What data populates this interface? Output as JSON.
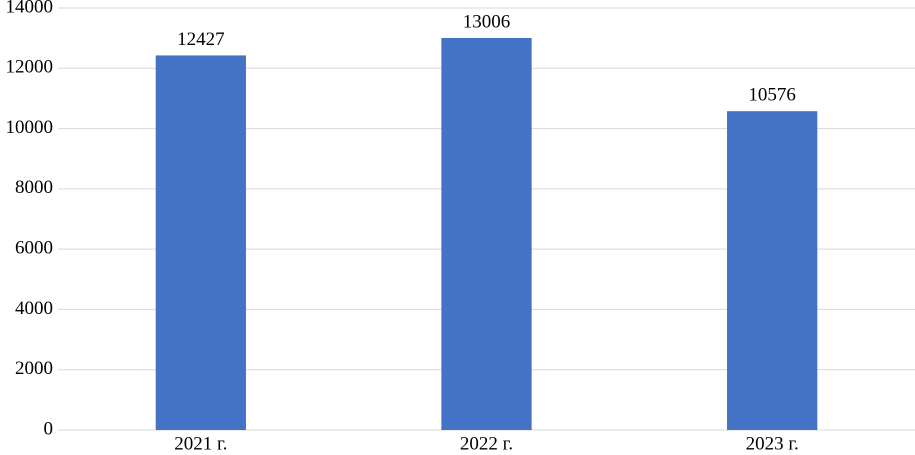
{
  "chart_data": {
    "type": "bar",
    "categories": [
      "2021 г.",
      "2022 г.",
      "2023 г."
    ],
    "values": [
      12427,
      13006,
      10576
    ],
    "color": "#4472c4",
    "ylim": [
      0,
      14000
    ],
    "yticks": [
      0,
      2000,
      4000,
      6000,
      8000,
      10000,
      12000,
      14000
    ],
    "grid": true
  }
}
